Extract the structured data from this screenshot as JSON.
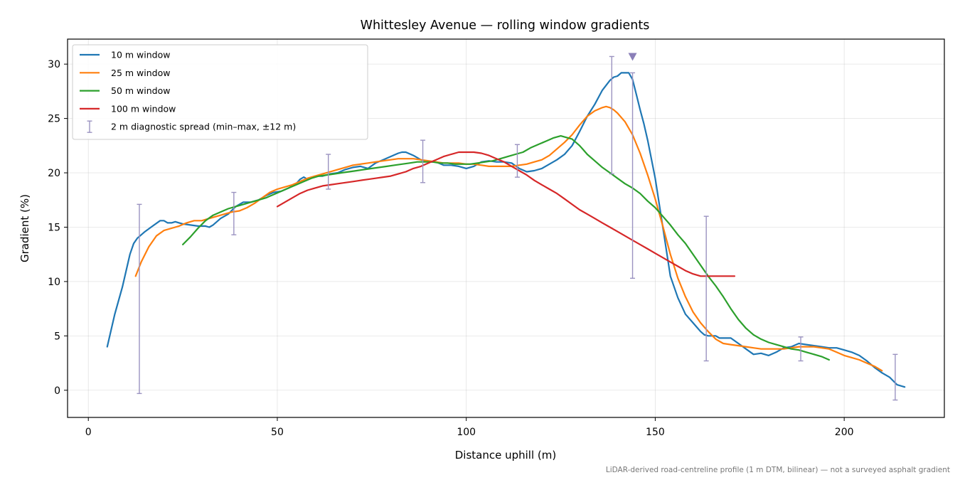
{
  "chart_data": {
    "type": "line",
    "title": "Whittesley Avenue — rolling window gradients",
    "xlabel": "Distance uphill (m)",
    "ylabel": "Gradient (%)",
    "xlim": [
      -5.5,
      226.5
    ],
    "ylim": [
      -2.5,
      32.3
    ],
    "xticks": [
      0,
      50,
      100,
      150,
      200
    ],
    "yticks": [
      0,
      5,
      10,
      15,
      20,
      25,
      30
    ],
    "grid": true,
    "legend_position": "top-left",
    "footnote": "LiDAR-derived road-centreline profile (1 m DTM, bilinear) — not a surveyed asphalt gradient",
    "series": [
      {
        "name": "10 m window",
        "color": "#1f77b4",
        "x": [
          5,
          7,
          9,
          11,
          12,
          13,
          15,
          17,
          19,
          20,
          21,
          22,
          23,
          24,
          25,
          27,
          29,
          31,
          32,
          33,
          35,
          37,
          39,
          41,
          43,
          45,
          47,
          49,
          51,
          53,
          55,
          56,
          57,
          58,
          60,
          62,
          64,
          66,
          68,
          70,
          72,
          74,
          76,
          78,
          80,
          82,
          83,
          84,
          86,
          88,
          90,
          92,
          94,
          96,
          98,
          100,
          102,
          104,
          106,
          108,
          110,
          112,
          114,
          116,
          118,
          120,
          122,
          124,
          126,
          128,
          130,
          132,
          134,
          136,
          138,
          139,
          140,
          141,
          142,
          143,
          144,
          145,
          146,
          147,
          148,
          150,
          152,
          154,
          156,
          158,
          160,
          161,
          162,
          163,
          164,
          165,
          166,
          167,
          168,
          170,
          172,
          174,
          176,
          178,
          180,
          182,
          184,
          186,
          188,
          190,
          192,
          194,
          196,
          198,
          200,
          202,
          204,
          206,
          208,
          210,
          212,
          214,
          216
        ],
        "y": [
          4.0,
          7.0,
          9.5,
          12.5,
          13.5,
          14.0,
          14.6,
          15.1,
          15.6,
          15.6,
          15.4,
          15.4,
          15.5,
          15.4,
          15.3,
          15.2,
          15.1,
          15.1,
          15.0,
          15.2,
          15.8,
          16.2,
          16.9,
          17.3,
          17.3,
          17.5,
          17.9,
          18.2,
          18.3,
          18.6,
          19.0,
          19.4,
          19.6,
          19.4,
          19.7,
          19.7,
          19.9,
          20.0,
          20.3,
          20.5,
          20.6,
          20.4,
          20.9,
          21.2,
          21.5,
          21.8,
          21.9,
          21.9,
          21.6,
          21.2,
          21.0,
          21.0,
          20.7,
          20.7,
          20.6,
          20.4,
          20.6,
          21.0,
          21.1,
          21.0,
          21.0,
          20.9,
          20.4,
          20.1,
          20.2,
          20.4,
          20.8,
          21.2,
          21.7,
          22.5,
          23.8,
          25.2,
          26.3,
          27.6,
          28.5,
          28.8,
          28.9,
          29.2,
          29.2,
          29.2,
          28.6,
          27.2,
          25.8,
          24.5,
          23.0,
          19.5,
          15.0,
          10.5,
          8.5,
          7.0,
          6.2,
          5.8,
          5.4,
          5.1,
          5.0,
          5.0,
          5.0,
          4.8,
          4.8,
          4.8,
          4.3,
          3.8,
          3.3,
          3.4,
          3.2,
          3.5,
          3.9,
          4.0,
          4.3,
          4.2,
          4.1,
          4.0,
          3.9,
          3.9,
          3.7,
          3.5,
          3.2,
          2.7,
          2.1,
          1.6,
          1.2,
          0.5,
          0.3
        ]
      },
      {
        "name": "25 m window",
        "color": "#ff7f0e",
        "x": [
          12.5,
          14,
          16,
          18,
          20,
          22,
          24,
          26,
          28,
          30,
          32,
          34,
          36,
          38,
          40,
          42,
          44,
          46,
          48,
          50,
          52,
          54,
          56,
          58,
          60,
          62,
          64,
          66,
          68,
          70,
          72,
          74,
          76,
          78,
          80,
          82,
          84,
          86,
          88,
          90,
          92,
          94,
          96,
          98,
          100,
          102,
          104,
          106,
          108,
          110,
          112,
          114,
          116,
          118,
          120,
          122,
          124,
          126,
          128,
          130,
          132,
          134,
          136,
          137,
          138,
          139,
          140,
          142,
          144,
          146,
          148,
          150,
          152,
          154,
          156,
          158,
          160,
          162,
          164,
          166,
          168,
          170,
          172,
          174,
          176,
          178,
          180,
          182,
          184,
          186,
          188,
          190,
          192,
          194,
          196,
          198,
          200,
          202,
          204,
          206,
          208,
          210
        ],
        "y": [
          10.5,
          11.8,
          13.2,
          14.2,
          14.7,
          14.9,
          15.1,
          15.4,
          15.6,
          15.6,
          15.8,
          16.0,
          16.2,
          16.4,
          16.5,
          16.8,
          17.2,
          17.7,
          18.2,
          18.5,
          18.7,
          18.9,
          19.2,
          19.5,
          19.7,
          19.9,
          20.1,
          20.3,
          20.5,
          20.7,
          20.8,
          20.9,
          21.0,
          21.1,
          21.2,
          21.3,
          21.3,
          21.3,
          21.2,
          21.1,
          21.0,
          20.9,
          20.9,
          20.9,
          20.8,
          20.8,
          20.7,
          20.6,
          20.6,
          20.6,
          20.6,
          20.7,
          20.8,
          21.0,
          21.2,
          21.6,
          22.2,
          22.8,
          23.5,
          24.4,
          25.2,
          25.7,
          26.0,
          26.1,
          26.0,
          25.8,
          25.5,
          24.7,
          23.5,
          21.8,
          19.8,
          17.6,
          15.1,
          12.5,
          10.3,
          8.6,
          7.2,
          6.2,
          5.4,
          4.7,
          4.3,
          4.2,
          4.1,
          4.0,
          3.9,
          3.8,
          3.8,
          3.8,
          3.8,
          3.9,
          4.0,
          4.0,
          4.0,
          3.9,
          3.8,
          3.5,
          3.2,
          3.0,
          2.8,
          2.5,
          2.2,
          1.8
        ]
      },
      {
        "name": "50 m window",
        "color": "#2ca02c",
        "x": [
          25,
          27,
          29,
          31,
          33,
          35,
          37,
          39,
          41,
          43,
          45,
          47,
          49,
          51,
          53,
          55,
          57,
          59,
          61,
          63,
          65,
          67,
          69,
          71,
          73,
          75,
          77,
          79,
          81,
          83,
          85,
          87,
          89,
          91,
          93,
          95,
          97,
          99,
          101,
          103,
          105,
          107,
          109,
          111,
          113,
          115,
          117,
          119,
          121,
          123,
          124,
          125,
          126,
          127,
          128,
          129,
          130,
          131,
          132,
          134,
          136,
          138,
          140,
          142,
          144,
          146,
          148,
          150,
          152,
          154,
          156,
          158,
          160,
          162,
          164,
          166,
          168,
          170,
          172,
          174,
          176,
          178,
          180,
          182,
          184,
          186,
          188,
          190,
          192,
          194,
          196
        ],
        "y": [
          13.4,
          14.1,
          14.9,
          15.6,
          16.1,
          16.4,
          16.7,
          16.9,
          17.1,
          17.3,
          17.5,
          17.7,
          18.0,
          18.3,
          18.6,
          18.9,
          19.2,
          19.5,
          19.7,
          19.8,
          19.9,
          20.0,
          20.1,
          20.2,
          20.3,
          20.4,
          20.5,
          20.6,
          20.7,
          20.8,
          20.9,
          21.0,
          21.0,
          21.0,
          20.9,
          20.9,
          20.8,
          20.8,
          20.8,
          20.9,
          21.0,
          21.1,
          21.3,
          21.5,
          21.7,
          21.9,
          22.3,
          22.6,
          22.9,
          23.2,
          23.3,
          23.4,
          23.3,
          23.2,
          23.1,
          22.8,
          22.5,
          22.1,
          21.7,
          21.1,
          20.5,
          20.0,
          19.5,
          19.0,
          18.6,
          18.1,
          17.4,
          16.8,
          16.0,
          15.2,
          14.3,
          13.5,
          12.5,
          11.5,
          10.5,
          9.6,
          8.6,
          7.5,
          6.5,
          5.7,
          5.1,
          4.7,
          4.4,
          4.2,
          4.0,
          3.8,
          3.7,
          3.5,
          3.3,
          3.1,
          2.8
        ]
      },
      {
        "name": "100 m window",
        "color": "#d62728",
        "x": [
          50,
          52,
          54,
          56,
          58,
          60,
          62,
          64,
          66,
          68,
          70,
          72,
          74,
          76,
          78,
          80,
          82,
          84,
          86,
          88,
          90,
          92,
          94,
          96,
          98,
          100,
          102,
          104,
          106,
          108,
          110,
          112,
          114,
          116,
          118,
          120,
          122,
          124,
          126,
          128,
          130,
          132,
          134,
          136,
          138,
          140,
          142,
          144,
          146,
          148,
          150,
          152,
          154,
          156,
          158,
          160,
          162,
          164,
          166,
          168,
          170,
          171
        ],
        "y": [
          16.9,
          17.3,
          17.7,
          18.1,
          18.4,
          18.6,
          18.8,
          18.9,
          19.0,
          19.1,
          19.2,
          19.3,
          19.4,
          19.5,
          19.6,
          19.7,
          19.9,
          20.1,
          20.4,
          20.6,
          20.9,
          21.2,
          21.5,
          21.7,
          21.9,
          21.9,
          21.9,
          21.8,
          21.6,
          21.3,
          21.0,
          20.6,
          20.2,
          19.8,
          19.3,
          18.9,
          18.5,
          18.1,
          17.6,
          17.1,
          16.6,
          16.2,
          15.8,
          15.4,
          15.0,
          14.6,
          14.2,
          13.8,
          13.4,
          13.0,
          12.6,
          12.2,
          11.8,
          11.4,
          11.0,
          10.7,
          10.5,
          10.5,
          10.5,
          10.5,
          10.5,
          10.5
        ]
      }
    ],
    "diagnostic": {
      "name": "2 m diagnostic spread (min–max, ±12 m)",
      "color": "#9b93c1",
      "points": [
        {
          "x": 13.5,
          "min": -0.3,
          "max": 17.1
        },
        {
          "x": 38.5,
          "min": 14.3,
          "max": 18.2
        },
        {
          "x": 63.5,
          "min": 18.5,
          "max": 21.7
        },
        {
          "x": 88.5,
          "min": 19.1,
          "max": 23.0
        },
        {
          "x": 113.5,
          "min": 19.6,
          "max": 22.6
        },
        {
          "x": 138.5,
          "min": 19.9,
          "max": 30.7
        },
        {
          "x": 144.0,
          "min": 10.3,
          "max": 29.2
        },
        {
          "x": 163.5,
          "min": 2.7,
          "max": 16.0
        },
        {
          "x": 188.5,
          "min": 2.7,
          "max": 4.9
        },
        {
          "x": 213.5,
          "min": -0.9,
          "max": 3.3
        }
      ]
    },
    "peak_marker": {
      "x": 144.0,
      "y": 30.7,
      "color": "#8a7fb8"
    }
  }
}
